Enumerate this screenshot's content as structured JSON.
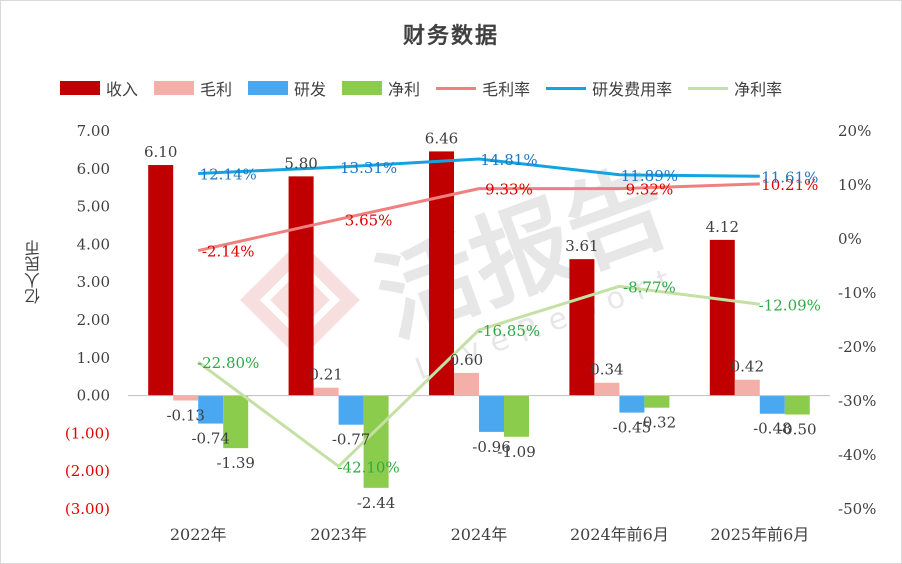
{
  "chart_data": {
    "type": "bar+line",
    "title": "财务数据",
    "ylabel": "亿人民币",
    "categories": [
      "2022年",
      "2023年",
      "2024年",
      "2024年前6月",
      "2025年前6月"
    ],
    "left_axis": {
      "ylim": [
        -3,
        7
      ],
      "ticks": [
        7,
        6,
        5,
        4,
        3,
        2,
        1,
        0,
        -1,
        -2,
        -3
      ],
      "tick_labels": [
        "7.00",
        "6.00",
        "5.00",
        "4.00",
        "3.00",
        "2.00",
        "1.00",
        "0.00",
        "(1.00)",
        "(2.00)",
        "(3.00)"
      ],
      "negative_color": "#e00000"
    },
    "right_axis": {
      "ylim": [
        -50,
        20
      ],
      "ticks": [
        20,
        10,
        0,
        -10,
        -20,
        -30,
        -40,
        -50
      ],
      "tick_labels": [
        "20%",
        "10%",
        "0%",
        "-10%",
        "-20%",
        "-30%",
        "-40%",
        "-50%"
      ]
    },
    "bar_series": [
      {
        "name": "收入",
        "color": "#c00000",
        "values": [
          6.1,
          5.8,
          6.46,
          3.61,
          4.12
        ],
        "labels": [
          "6.10",
          "5.80",
          "6.46",
          "3.61",
          "4.12"
        ]
      },
      {
        "name": "毛利",
        "color": "#f4b0a8",
        "values": [
          -0.13,
          0.21,
          0.6,
          0.34,
          0.42
        ],
        "labels": [
          "-0.13",
          "0.21",
          "0.60",
          "0.34",
          "0.42"
        ]
      },
      {
        "name": "研发",
        "color": "#4aa8f0",
        "values": [
          -0.74,
          -0.77,
          -0.96,
          -0.45,
          -0.48
        ],
        "labels": [
          "-0.74",
          "-0.77",
          "-0.96",
          "-0.45",
          "-0.48"
        ]
      },
      {
        "name": "净利",
        "color": "#8ccc4c",
        "values": [
          -1.39,
          -2.44,
          -1.09,
          -0.32,
          -0.5
        ],
        "labels": [
          "-1.39",
          "-2.44",
          "-1.09",
          "-0.32",
          "-0.50"
        ]
      }
    ],
    "line_series": [
      {
        "name": "毛利率",
        "color": "#f08080",
        "label_color": "#e00000",
        "values": [
          -2.14,
          3.65,
          9.33,
          9.32,
          10.21
        ],
        "labels": [
          "-2.14%",
          "3.65%",
          "9.33%",
          "9.32%",
          "10.21%"
        ]
      },
      {
        "name": "研发费用率",
        "color": "#12a4e0",
        "label_color": "#1f77c4",
        "values": [
          12.14,
          13.31,
          14.81,
          11.89,
          11.61
        ],
        "labels": [
          "12.14%",
          "13.31%",
          "14.81%",
          "11.89%",
          "11.61%"
        ]
      },
      {
        "name": "净利率",
        "color": "#c5e0a5",
        "label_color": "#2eaa44",
        "values": [
          -22.8,
          -42.1,
          -16.85,
          -8.77,
          -12.09
        ],
        "labels": [
          "-22.80%",
          "-42.10%",
          "-16.85%",
          "-8.77%",
          "-12.09%"
        ]
      }
    ],
    "legend_position": "top",
    "grid": false
  },
  "watermark": {
    "text": "活报告",
    "subtext": "LiveReport"
  }
}
